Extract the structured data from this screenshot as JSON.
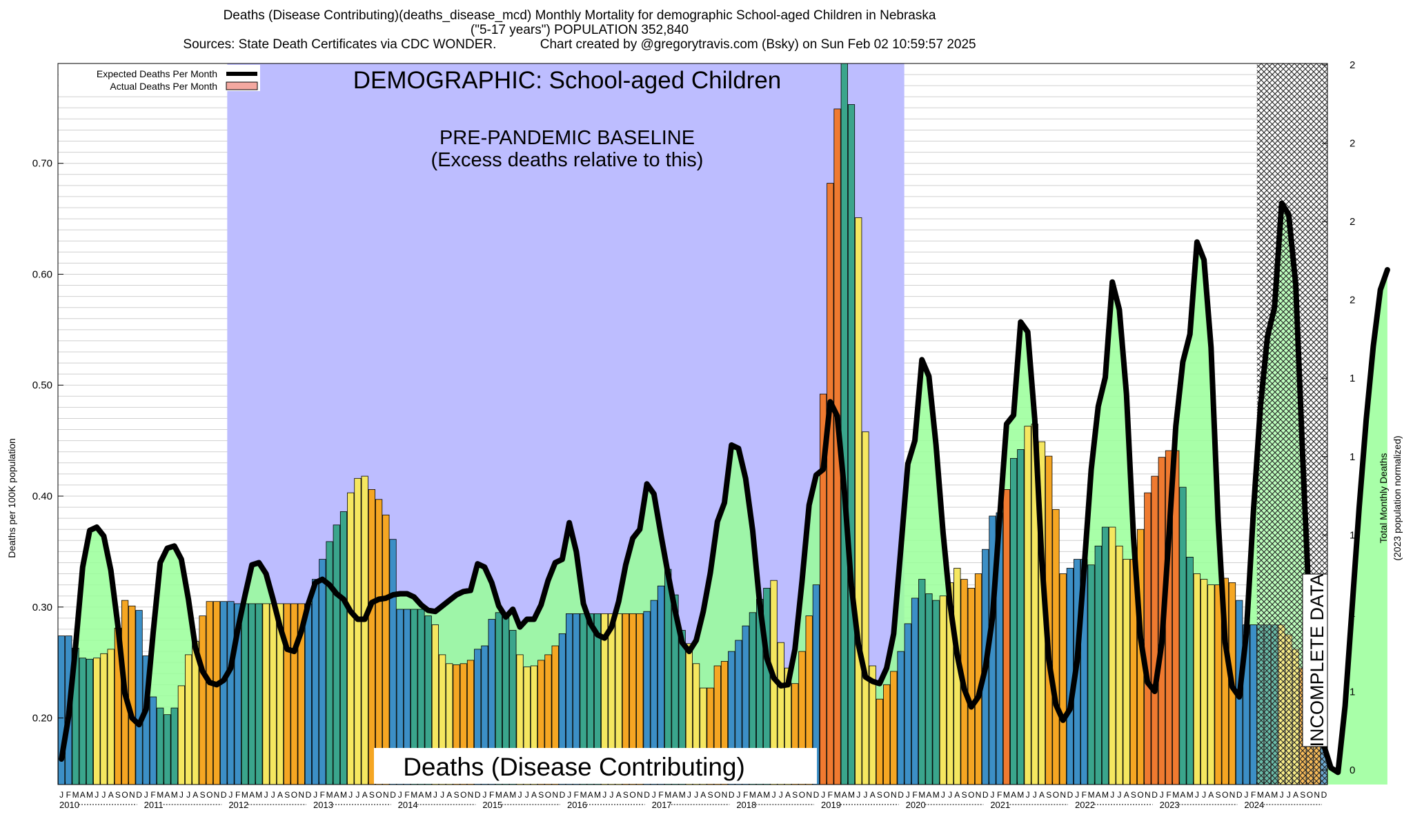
{
  "header": {
    "title_line1": "Deaths (Disease Contributing)(deaths_disease_mcd) Monthly Mortality for demographic School-aged Children in Nebraska",
    "title_line2": "(\"5-17 years\") POPULATION 352,840",
    "title_line3": "Sources: State Death Certificates via CDC WONDER.            Chart created by @gregorytravis.com (Bsky) on Sun Feb 02 10:59:57 2025"
  },
  "annotations": {
    "demographic": "DEMOGRAPHIC: School-aged Children",
    "baseline_line1": "PRE-PANDEMIC BASELINE",
    "baseline_line2": "(Excess deaths relative to this)",
    "metric_box": "Deaths (Disease Contributing)",
    "incomplete": "INCOMPLETE DATA"
  },
  "chart_data": {
    "type": "bar",
    "ylabel": "Deaths per 100K population",
    "y2label_line1": "Total Monthly Deaths",
    "y2label_line2": "(2023 population normalized)",
    "ylim": [
      0.14,
      0.79
    ],
    "yticks": [
      "0.20",
      "0.30",
      "0.40",
      "0.50",
      "0.60",
      "0.70"
    ],
    "y2ticks": [
      "0",
      "1",
      "1",
      "1",
      "1",
      "1",
      "2",
      "2",
      "2",
      "2"
    ],
    "month_letters": [
      "J",
      "F",
      "M",
      "A",
      "M",
      "J",
      "J",
      "A",
      "S",
      "O",
      "N",
      "D"
    ],
    "years": [
      "2010",
      "2011",
      "2012",
      "2013",
      "2014",
      "2015",
      "2016",
      "2017",
      "2018",
      "2019",
      "2020",
      "2021",
      "2022",
      "2023",
      "2024"
    ],
    "baseline_period": [
      "2012-01",
      "2019-12"
    ],
    "incomplete_period": [
      "2024-03",
      "2024-12"
    ],
    "legend": {
      "expected": "Expected Deaths Per Month",
      "actual": "Actual Deaths Per Month",
      "position": "top-left"
    },
    "colors": {
      "expected_line": "#000000",
      "actual_swatch": "#f4a8a0",
      "baseline_fill": "#bdbdff",
      "excess_fill": "#99ff99",
      "winter_bar": "#3c8fc6",
      "spring_bar": "#3aa58c",
      "summer_bar": "#f5e760",
      "fall_bar": "#f5a623",
      "winter_peak_bar": "#ef7a30"
    },
    "actual_values": [
      0.274,
      0.274,
      0.263,
      0.254,
      0.253,
      0.254,
      0.258,
      0.262,
      0.281,
      0.306,
      0.301,
      0.297,
      0.256,
      0.219,
      0.209,
      0.203,
      0.209,
      0.229,
      0.257,
      0.269,
      0.292,
      0.305,
      0.305,
      0.305,
      0.305,
      0.303,
      0.303,
      0.303,
      0.303,
      0.303,
      0.303,
      0.303,
      0.303,
      0.303,
      0.303,
      0.303,
      0.325,
      0.343,
      0.359,
      0.374,
      0.386,
      0.403,
      0.416,
      0.418,
      0.406,
      0.397,
      0.383,
      0.361,
      0.298,
      0.298,
      0.298,
      0.298,
      0.292,
      0.284,
      0.257,
      0.249,
      0.248,
      0.249,
      0.252,
      0.262,
      0.265,
      0.289,
      0.295,
      0.291,
      0.279,
      0.257,
      0.246,
      0.247,
      0.252,
      0.257,
      0.265,
      0.276,
      0.294,
      0.294,
      0.294,
      0.294,
      0.294,
      0.294,
      0.294,
      0.294,
      0.294,
      0.294,
      0.294,
      0.296,
      0.306,
      0.319,
      0.334,
      0.311,
      0.279,
      0.267,
      0.249,
      0.227,
      0.227,
      0.247,
      0.251,
      0.26,
      0.27,
      0.283,
      0.295,
      0.307,
      0.317,
      0.324,
      0.268,
      0.245,
      0.231,
      0.26,
      0.292,
      0.32,
      0.492,
      0.682,
      0.749,
      0.79,
      0.753,
      0.651,
      0.458,
      0.247,
      0.217,
      0.23,
      0.242,
      0.26,
      0.285,
      0.308,
      0.325,
      0.312,
      0.306,
      0.31,
      0.322,
      0.335,
      0.325,
      0.317,
      0.33,
      0.352,
      0.382,
      0.385,
      0.406,
      0.434,
      0.442,
      0.463,
      0.465,
      0.449,
      0.436,
      0.388,
      0.33,
      0.335,
      0.343,
      0.343,
      0.338,
      0.355,
      0.372,
      0.372,
      0.355,
      0.343,
      0.343,
      0.37,
      0.403,
      0.418,
      0.435,
      0.441,
      0.441,
      0.408,
      0.345,
      0.33,
      0.325,
      0.32,
      0.32,
      0.326,
      0.322,
      0.306,
      0.284,
      0.284,
      0.284,
      0.284,
      0.284,
      0.284,
      0.275,
      0.262,
      0.245,
      0.242,
      0.23,
      0.26
    ],
    "expected_values": [
      0.163,
      0.201,
      0.265,
      0.336,
      0.369,
      0.372,
      0.364,
      0.333,
      0.283,
      0.222,
      0.2,
      0.194,
      0.208,
      0.277,
      0.34,
      0.353,
      0.355,
      0.343,
      0.307,
      0.263,
      0.242,
      0.232,
      0.23,
      0.234,
      0.245,
      0.28,
      0.31,
      0.338,
      0.34,
      0.33,
      0.307,
      0.282,
      0.262,
      0.26,
      0.278,
      0.303,
      0.322,
      0.325,
      0.32,
      0.312,
      0.307,
      0.296,
      0.289,
      0.289,
      0.304,
      0.307,
      0.308,
      0.311,
      0.312,
      0.312,
      0.309,
      0.302,
      0.297,
      0.296,
      0.301,
      0.306,
      0.311,
      0.314,
      0.315,
      0.339,
      0.336,
      0.322,
      0.301,
      0.291,
      0.298,
      0.282,
      0.289,
      0.289,
      0.302,
      0.324,
      0.34,
      0.343,
      0.376,
      0.35,
      0.303,
      0.285,
      0.275,
      0.272,
      0.282,
      0.305,
      0.338,
      0.362,
      0.37,
      0.411,
      0.402,
      0.365,
      0.33,
      0.297,
      0.268,
      0.26,
      0.27,
      0.296,
      0.331,
      0.377,
      0.394,
      0.446,
      0.443,
      0.416,
      0.369,
      0.303,
      0.254,
      0.236,
      0.229,
      0.23,
      0.262,
      0.323,
      0.392,
      0.419,
      0.424,
      0.485,
      0.472,
      0.405,
      0.319,
      0.266,
      0.237,
      0.233,
      0.231,
      0.245,
      0.276,
      0.352,
      0.429,
      0.45,
      0.523,
      0.508,
      0.446,
      0.367,
      0.302,
      0.257,
      0.226,
      0.21,
      0.219,
      0.245,
      0.29,
      0.379,
      0.465,
      0.473,
      0.557,
      0.548,
      0.469,
      0.342,
      0.252,
      0.212,
      0.198,
      0.208,
      0.251,
      0.335,
      0.424,
      0.481,
      0.507,
      0.593,
      0.568,
      0.492,
      0.363,
      0.272,
      0.232,
      0.224,
      0.267,
      0.362,
      0.463,
      0.521,
      0.546,
      0.629,
      0.613,
      0.534,
      0.378,
      0.268,
      0.228,
      0.219,
      0.276,
      0.386,
      0.481,
      0.544,
      0.57,
      0.664,
      0.654,
      0.591,
      0.434,
      0.29,
      0.21,
      0.175,
      0.155,
      0.151,
      0.211,
      0.3,
      0.39,
      0.469,
      0.535,
      0.586,
      0.604
    ]
  }
}
